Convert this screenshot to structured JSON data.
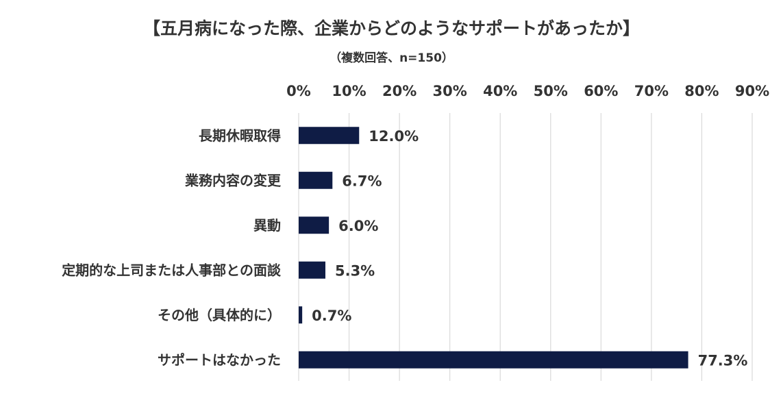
{
  "chart_data": {
    "type": "bar",
    "orientation": "horizontal",
    "title": "【五月病になった際、企業からどのようなサポートがあったか】",
    "subtitle": "（複数回答、n=150）",
    "categories": [
      "長期休暇取得",
      "業務内容の変更",
      "異動",
      "定期的な上司または人事部との面談",
      "その他（具体的に）",
      "サポートはなかった"
    ],
    "values": [
      12.0,
      6.7,
      6.0,
      5.3,
      0.7,
      77.3
    ],
    "data_labels": [
      "12.0%",
      "6.7%",
      "6.0%",
      "5.3%",
      "0.7%",
      "77.3%"
    ],
    "xlim": [
      0,
      90
    ],
    "x_ticks": [
      0,
      10,
      20,
      30,
      40,
      50,
      60,
      70,
      80,
      90
    ],
    "x_tick_labels": [
      "0%",
      "10%",
      "20%",
      "30%",
      "40%",
      "50%",
      "60%",
      "70%",
      "80%",
      "90%"
    ],
    "x_axis_position": "top",
    "grid": true,
    "legend": "none",
    "bar_color": "#0f1c45"
  }
}
